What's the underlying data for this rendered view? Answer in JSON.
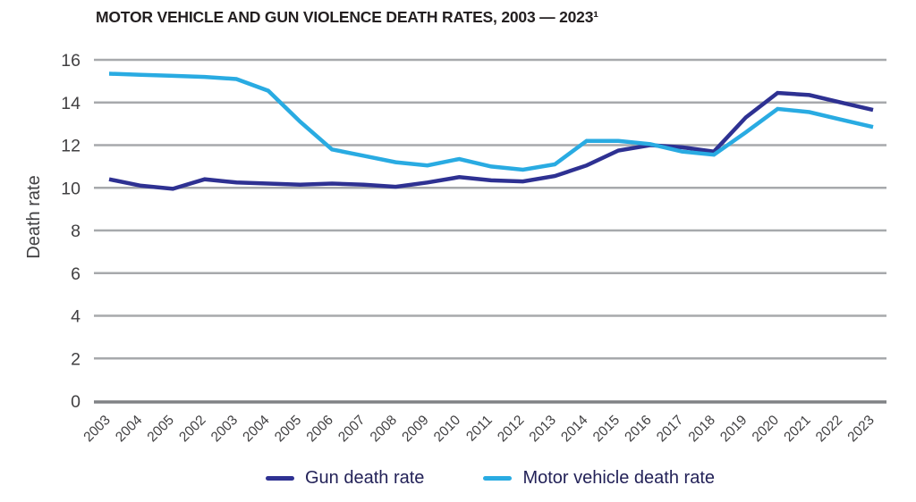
{
  "chart_data": {
    "type": "line",
    "title": "MOTOR VEHICLE AND GUN VIOLENCE DEATH RATES, 2003 — 2023¹",
    "xlabel": "",
    "ylabel": "Death rate",
    "ylim": [
      0,
      16
    ],
    "yticks": [
      0,
      2,
      4,
      6,
      8,
      10,
      12,
      14,
      16
    ],
    "grid": "horizontal",
    "legend_position": "bottom",
    "categories": [
      "2003",
      "2004",
      "2005",
      "2002",
      "2003",
      "2004",
      "2005",
      "2006",
      "2007",
      "2008",
      "2009",
      "2010",
      "2011",
      "2012",
      "2013",
      "2014",
      "2015",
      "2016",
      "2017",
      "2018",
      "2019",
      "2020",
      "2021",
      "2022",
      "2023"
    ],
    "series": [
      {
        "name": "Gun death rate",
        "color": "#2e3192",
        "values": [
          10.4,
          10.1,
          9.95,
          10.4,
          10.25,
          10.2,
          10.15,
          10.2,
          10.15,
          10.05,
          10.25,
          10.5,
          10.35,
          10.3,
          10.55,
          11.05,
          11.75,
          12.0,
          11.9,
          11.7,
          13.3,
          14.45,
          14.35,
          14.0,
          13.65
        ]
      },
      {
        "name": "Motor vehicle death rate",
        "color": "#29abe2",
        "values": [
          15.35,
          15.3,
          15.25,
          15.2,
          15.1,
          14.55,
          13.1,
          11.8,
          11.5,
          11.2,
          11.05,
          11.35,
          11.0,
          10.85,
          11.1,
          12.2,
          12.2,
          12.05,
          11.7,
          11.55,
          12.6,
          13.7,
          13.55,
          13.2,
          12.85
        ]
      }
    ],
    "colors": {
      "gridline": "#a7a9ac",
      "axis_line": "#808285",
      "axis_text": "#414042",
      "title_text": "#231f20",
      "legend_text": "#232258"
    }
  }
}
